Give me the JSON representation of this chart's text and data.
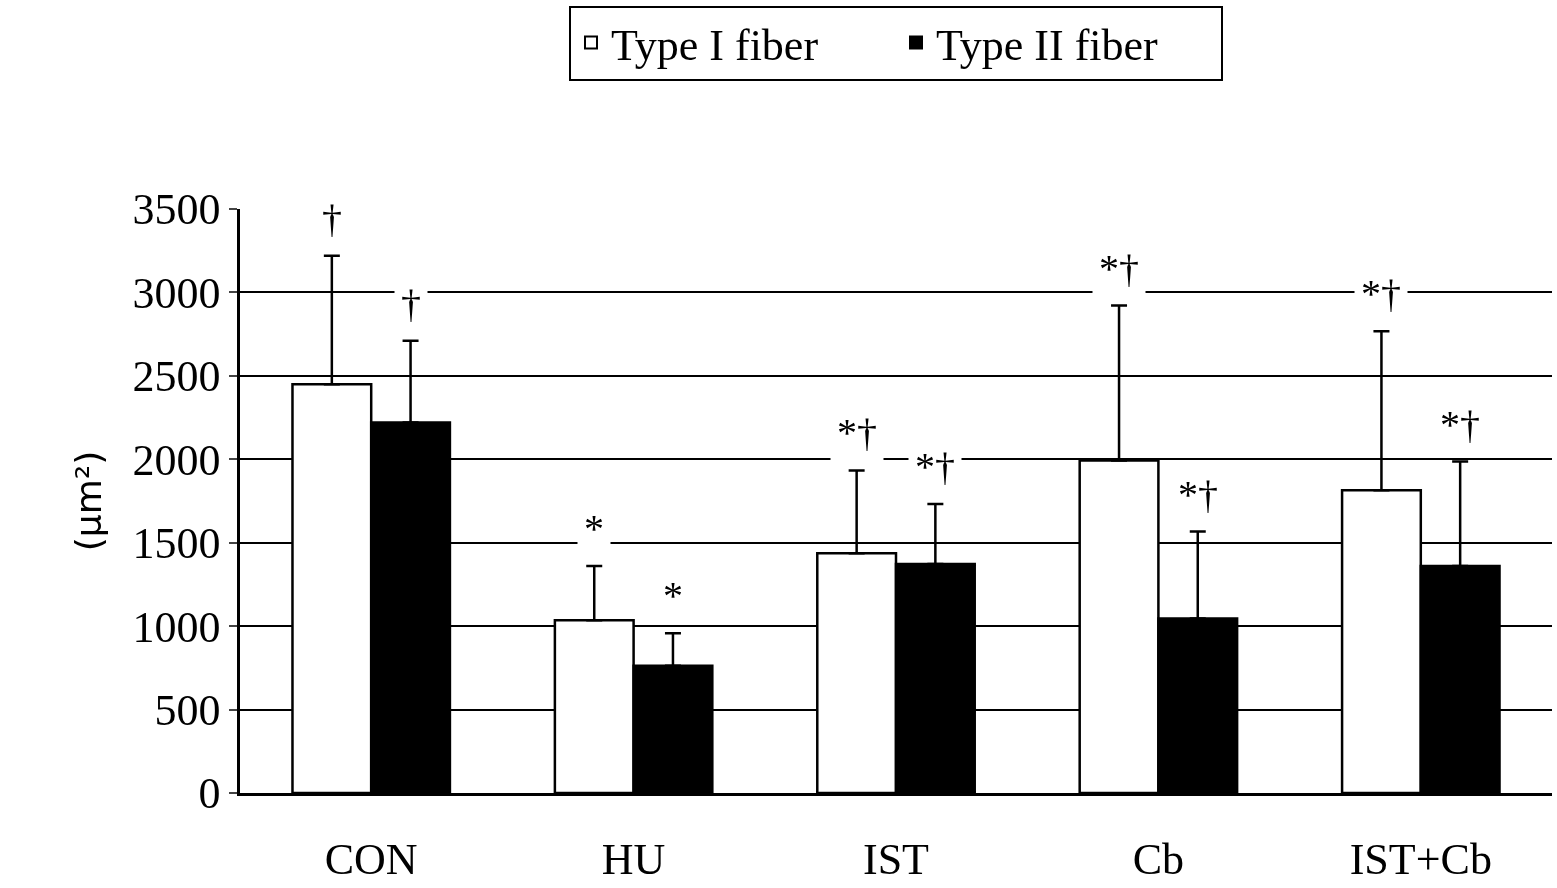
{
  "chart_data": {
    "type": "bar",
    "ylabel": "(μm²)",
    "categories": [
      "CON",
      "HU",
      "IST",
      "Cb",
      "IST+Cb"
    ],
    "series": [
      {
        "name": "Type I fiber",
        "color": "#ffffff",
        "values": [
          2450,
          1035,
          1437,
          1992,
          1815
        ],
        "errors": [
          [
            2450,
            3220
          ],
          [
            1035,
            1360
          ],
          [
            1437,
            1933
          ],
          [
            1992,
            2921
          ],
          [
            1815,
            2767
          ]
        ]
      },
      {
        "name": "Type II fiber",
        "color": "#000000",
        "values": [
          2220,
          763,
          1372,
          1046,
          1360
        ],
        "errors": [
          [
            2220,
            2710
          ],
          [
            763,
            958
          ],
          [
            1372,
            1732
          ],
          [
            1046,
            1567
          ],
          [
            1360,
            1986
          ]
        ]
      }
    ],
    "annotations": [
      "†",
      "†",
      "*",
      "*",
      "*†",
      "*†",
      "*†",
      "*†",
      "*†",
      "*†"
    ],
    "ylim": [
      0,
      3500
    ],
    "yticks": [
      0,
      500,
      1000,
      1500,
      2000,
      2500,
      3000,
      3500
    ],
    "grid": "y",
    "legend": "top"
  }
}
